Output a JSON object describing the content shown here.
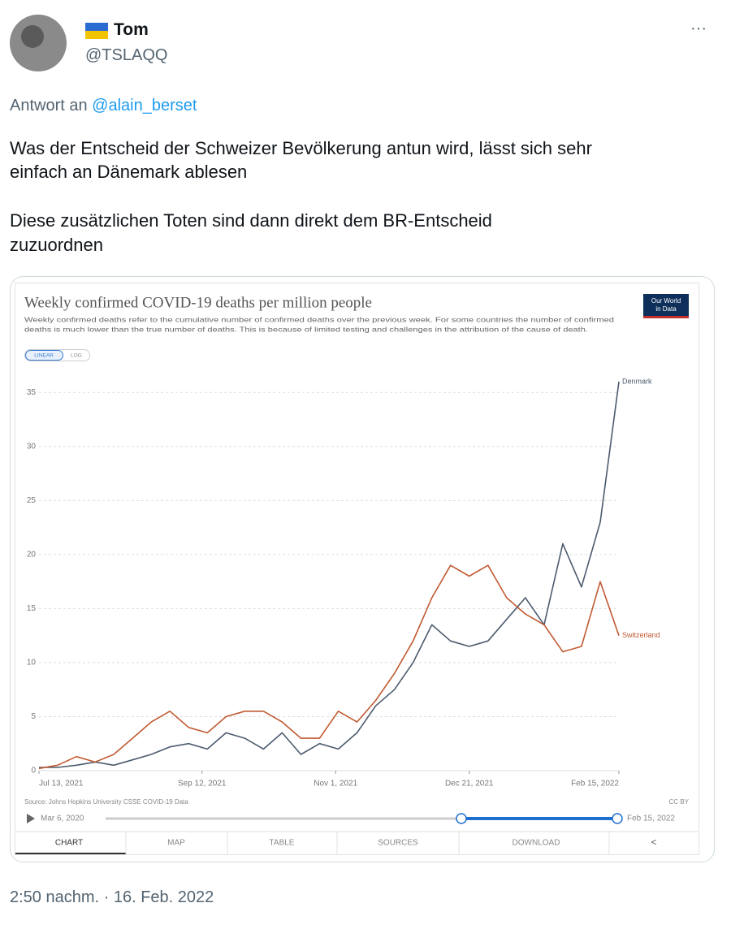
{
  "tweet": {
    "name": "Tom",
    "handle": "@TSLAQQ",
    "menu": "···",
    "reply_prefix": "Antwort an",
    "reply_to": "@alain_berset",
    "text_lines": [
      "Was der Entscheid der Schweizer Bevölkerung antun wird, lässt sich sehr",
      "einfach an Dänemark ablesen",
      "Diese zusätzlichen Toten sind dann direkt dem BR-Entscheid",
      "zuzuordnen"
    ],
    "timestamp": "2:50 nachm. · 16. Feb. 2022"
  },
  "chart_data": {
    "type": "line",
    "title": "Weekly confirmed COVID-19 deaths per million people",
    "subtitle_lines": [
      "Weekly confirmed deaths refer to the cumulative number of confirmed deaths over the previous week. For some countries the number of confirmed",
      "deaths is much lower than the true number of deaths. This is because of limited testing and challenges in the attribution of the cause of death."
    ],
    "logo_lines": [
      "Our World",
      "in Data"
    ],
    "scale_toggle": [
      "LINEAR",
      "LOG"
    ],
    "x": [
      "2021-07-13",
      "2021-07-20",
      "2021-07-27",
      "2021-08-03",
      "2021-08-10",
      "2021-08-17",
      "2021-08-24",
      "2021-08-31",
      "2021-09-07",
      "2021-09-14",
      "2021-09-21",
      "2021-09-28",
      "2021-10-05",
      "2021-10-12",
      "2021-10-19",
      "2021-10-26",
      "2021-11-02",
      "2021-11-09",
      "2021-11-16",
      "2021-11-23",
      "2021-11-30",
      "2021-12-07",
      "2021-12-14",
      "2021-12-21",
      "2021-12-28",
      "2022-01-04",
      "2022-01-11",
      "2022-01-18",
      "2022-01-25",
      "2022-02-01",
      "2022-02-08",
      "2022-02-15"
    ],
    "series": [
      {
        "name": "Denmark",
        "color": "#4c5b6e",
        "values": [
          0.3,
          0.3,
          0.5,
          0.8,
          0.5,
          1.0,
          1.5,
          2.2,
          2.5,
          2.0,
          3.5,
          3.0,
          2.0,
          3.5,
          1.5,
          2.5,
          2.0,
          3.5,
          6,
          7.5,
          10,
          13.5,
          12,
          11.5,
          12,
          14,
          16,
          13.5,
          21,
          17,
          23,
          36
        ]
      },
      {
        "name": "Switzerland",
        "color": "#c15a31",
        "values": [
          0.2,
          0.5,
          1.3,
          0.8,
          1.5,
          3,
          4.5,
          5.5,
          4.0,
          3.5,
          5,
          5.5,
          5.5,
          4.5,
          3,
          3,
          5.5,
          4.5,
          6.5,
          9,
          12,
          16,
          19,
          18,
          19,
          16,
          14.5,
          13.5,
          11,
          11.5,
          17.5,
          12.5
        ]
      }
    ],
    "xlim": [
      "2021-07-13",
      "2022-02-15"
    ],
    "xticks": [
      {
        "value": "2021-07-13",
        "label": "Jul 13, 2021"
      },
      {
        "value": "2021-09-12",
        "label": "Sep 12, 2021"
      },
      {
        "value": "2021-11-01",
        "label": "Nov 1, 2021"
      },
      {
        "value": "2021-12-21",
        "label": "Dec 21, 2021"
      },
      {
        "value": "2022-02-15",
        "label": "Feb 15, 2022"
      }
    ],
    "ylim": [
      0,
      36
    ],
    "yticks": [
      0,
      5,
      10,
      15,
      20,
      25,
      30,
      35
    ],
    "grid": true,
    "source": "Source: Johns Hopkins University CSSE COVID-19 Data",
    "license": "CC BY",
    "timeline_start": "Mar 6, 2020",
    "timeline_end": "Feb 15, 2022",
    "tabs": [
      "CHART",
      "MAP",
      "TABLE",
      "SOURCES",
      "DOWNLOAD"
    ]
  }
}
